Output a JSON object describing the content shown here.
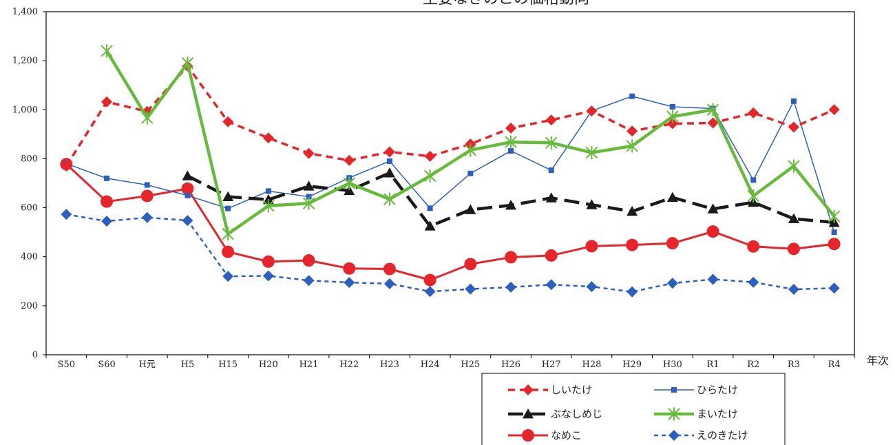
{
  "chart_data": {
    "type": "line",
    "title": "主要なきのこの価格動向",
    "xlabel": "年次",
    "ylabel": "",
    "ylim": [
      0,
      1400
    ],
    "yticks": [
      0,
      200,
      400,
      600,
      800,
      1000,
      1200,
      1400
    ],
    "ytick_labels": [
      "0",
      "200",
      "400",
      "600",
      "800",
      "1,000",
      "1,200",
      "1,400"
    ],
    "grid": false,
    "legend_position": "bottom-right",
    "categories": [
      "S50",
      "S60",
      "H元",
      "H5",
      "H15",
      "H20",
      "H21",
      "H22",
      "H23",
      "H24",
      "H25",
      "H26",
      "H27",
      "H28",
      "H29",
      "H30",
      "R1",
      "R2",
      "R3",
      "R4"
    ],
    "series": [
      {
        "name": "しいたけ",
        "color": "#e8242b",
        "dash": "10,7",
        "marker": "diamond",
        "stroke_width": 3.5,
        "values": [
          770,
          1032,
          993,
          1178,
          951,
          885,
          822,
          793,
          828,
          810,
          860,
          925,
          958,
          995,
          913,
          943,
          946,
          987,
          929,
          1000
        ]
      },
      {
        "name": "ひらたけ",
        "color": "#2c5fbf",
        "dash": "",
        "marker": "square",
        "stroke_width": 1.5,
        "values": [
          780,
          720,
          693,
          650,
          597,
          668,
          645,
          722,
          790,
          598,
          740,
          832,
          753,
          995,
          1055,
          1012,
          1005,
          713,
          1035,
          500
        ]
      },
      {
        "name": "ぶなしめじ",
        "color": "#1a1a1a",
        "dash": "22,10",
        "marker": "triangle",
        "stroke_width": 4.5,
        "values": [
          null,
          null,
          null,
          730,
          645,
          633,
          688,
          670,
          742,
          525,
          592,
          610,
          640,
          612,
          585,
          642,
          595,
          622,
          555,
          540
        ]
      },
      {
        "name": "まいたけ",
        "color": "#66bb3a",
        "dash": "",
        "marker": "star",
        "stroke_width": 4.5,
        "values": [
          null,
          1240,
          967,
          1190,
          493,
          608,
          618,
          700,
          635,
          730,
          835,
          868,
          865,
          825,
          852,
          972,
          1000,
          648,
          770,
          565
        ]
      },
      {
        "name": "なめこ",
        "color": "#e8242b",
        "dash": "",
        "marker": "circle",
        "stroke_width": 3,
        "values": [
          778,
          625,
          648,
          678,
          420,
          380,
          385,
          352,
          350,
          305,
          370,
          398,
          405,
          443,
          448,
          455,
          503,
          442,
          432,
          452
        ]
      },
      {
        "name": "えのきたけ",
        "color": "#2c5fbf",
        "dash": "6,5",
        "marker": "diamond",
        "stroke_width": 2.5,
        "values": [
          573,
          545,
          560,
          548,
          320,
          322,
          303,
          295,
          290,
          258,
          268,
          276,
          286,
          278,
          257,
          292,
          308,
          296,
          267,
          272
        ]
      }
    ]
  }
}
